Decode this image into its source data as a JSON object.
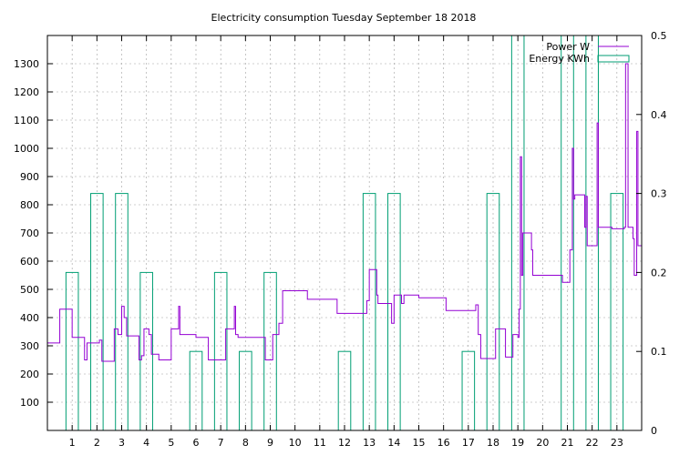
{
  "chart_data": {
    "type": "line",
    "title": "Electricity consumption Tuesday September 18 2018",
    "x": {
      "range": [
        0,
        24
      ],
      "ticks": [
        1,
        2,
        3,
        4,
        5,
        6,
        7,
        8,
        9,
        10,
        11,
        12,
        13,
        14,
        15,
        16,
        17,
        18,
        19,
        20,
        21,
        22,
        23
      ]
    },
    "y_left": {
      "range": [
        0,
        1400
      ],
      "ticks": [
        100,
        200,
        300,
        400,
        500,
        600,
        700,
        800,
        900,
        1000,
        1100,
        1200,
        1300
      ]
    },
    "y_right": {
      "range": [
        0,
        0.5
      ],
      "ticks": [
        "0",
        "0.1",
        "0.2",
        "0.3",
        "0.4",
        "0.5"
      ]
    },
    "grid": true,
    "legend_position": "top-right",
    "colors": {
      "power": "#9400d3",
      "energy": "#009e73"
    },
    "series": [
      {
        "name": "Power W",
        "axis": "left",
        "style": "steps",
        "points": [
          [
            0.0,
            310
          ],
          [
            0.5,
            430
          ],
          [
            1.0,
            330
          ],
          [
            1.5,
            250
          ],
          [
            1.6,
            310
          ],
          [
            2.1,
            320
          ],
          [
            2.2,
            245
          ],
          [
            2.7,
            360
          ],
          [
            2.85,
            340
          ],
          [
            3.0,
            440
          ],
          [
            3.1,
            400
          ],
          [
            3.2,
            335
          ],
          [
            3.7,
            250
          ],
          [
            3.8,
            265
          ],
          [
            3.9,
            360
          ],
          [
            4.1,
            340
          ],
          [
            4.2,
            270
          ],
          [
            4.5,
            250
          ],
          [
            5.0,
            360
          ],
          [
            5.3,
            440
          ],
          [
            5.35,
            340
          ],
          [
            6.0,
            330
          ],
          [
            6.5,
            250
          ],
          [
            7.2,
            360
          ],
          [
            7.55,
            440
          ],
          [
            7.6,
            340
          ],
          [
            7.7,
            330
          ],
          [
            8.8,
            250
          ],
          [
            9.1,
            340
          ],
          [
            9.35,
            380
          ],
          [
            9.5,
            495
          ],
          [
            10.5,
            465
          ],
          [
            11.7,
            415
          ],
          [
            12.9,
            460
          ],
          [
            13.0,
            570
          ],
          [
            13.3,
            480
          ],
          [
            13.35,
            450
          ],
          [
            13.9,
            380
          ],
          [
            14.0,
            480
          ],
          [
            14.3,
            450
          ],
          [
            14.4,
            480
          ],
          [
            15.0,
            470
          ],
          [
            16.1,
            425
          ],
          [
            17.3,
            445
          ],
          [
            17.4,
            340
          ],
          [
            17.5,
            255
          ],
          [
            18.1,
            360
          ],
          [
            18.5,
            260
          ],
          [
            18.8,
            340
          ],
          [
            19.0,
            330
          ],
          [
            19.05,
            430
          ],
          [
            19.1,
            970
          ],
          [
            19.15,
            550
          ],
          [
            19.2,
            700
          ],
          [
            19.55,
            640
          ],
          [
            19.6,
            550
          ],
          [
            20.8,
            525
          ],
          [
            21.1,
            640
          ],
          [
            21.2,
            1000
          ],
          [
            21.25,
            820
          ],
          [
            21.3,
            835
          ],
          [
            21.7,
            720
          ],
          [
            21.75,
            830
          ],
          [
            21.8,
            655
          ],
          [
            22.2,
            1090
          ],
          [
            22.25,
            720
          ],
          [
            22.8,
            715
          ],
          [
            23.3,
            720
          ],
          [
            23.35,
            1300
          ],
          [
            23.45,
            720
          ],
          [
            23.65,
            680
          ],
          [
            23.7,
            550
          ],
          [
            23.8,
            1060
          ],
          [
            23.85,
            655
          ],
          [
            24.0,
            655
          ]
        ]
      },
      {
        "name": "Energy KWh",
        "axis": "right",
        "style": "boxes",
        "boxes": [
          {
            "x": [
              0.75,
              1.25
            ],
            "value": 0.2
          },
          {
            "x": [
              1.75,
              2.25
            ],
            "value": 0.3
          },
          {
            "x": [
              2.75,
              3.25
            ],
            "value": 0.3
          },
          {
            "x": [
              3.75,
              4.25
            ],
            "value": 0.2
          },
          {
            "x": [
              5.75,
              6.25
            ],
            "value": 0.1
          },
          {
            "x": [
              6.75,
              7.25
            ],
            "value": 0.2
          },
          {
            "x": [
              7.75,
              8.25
            ],
            "value": 0.1
          },
          {
            "x": [
              8.75,
              9.25
            ],
            "value": 0.2
          },
          {
            "x": [
              11.75,
              12.25
            ],
            "value": 0.1
          },
          {
            "x": [
              12.75,
              13.25
            ],
            "value": 0.3
          },
          {
            "x": [
              13.75,
              14.25
            ],
            "value": 0.3
          },
          {
            "x": [
              16.75,
              17.25
            ],
            "value": 0.1
          },
          {
            "x": [
              17.75,
              18.25
            ],
            "value": 0.3
          },
          {
            "x": [
              18.75,
              19.25
            ],
            "value": 0.5
          },
          {
            "x": [
              20.75,
              21.25
            ],
            "value": 0.5
          },
          {
            "x": [
              21.75,
              22.25
            ],
            "value": 0.5
          },
          {
            "x": [
              22.75,
              23.25
            ],
            "value": 0.3
          }
        ]
      }
    ]
  }
}
